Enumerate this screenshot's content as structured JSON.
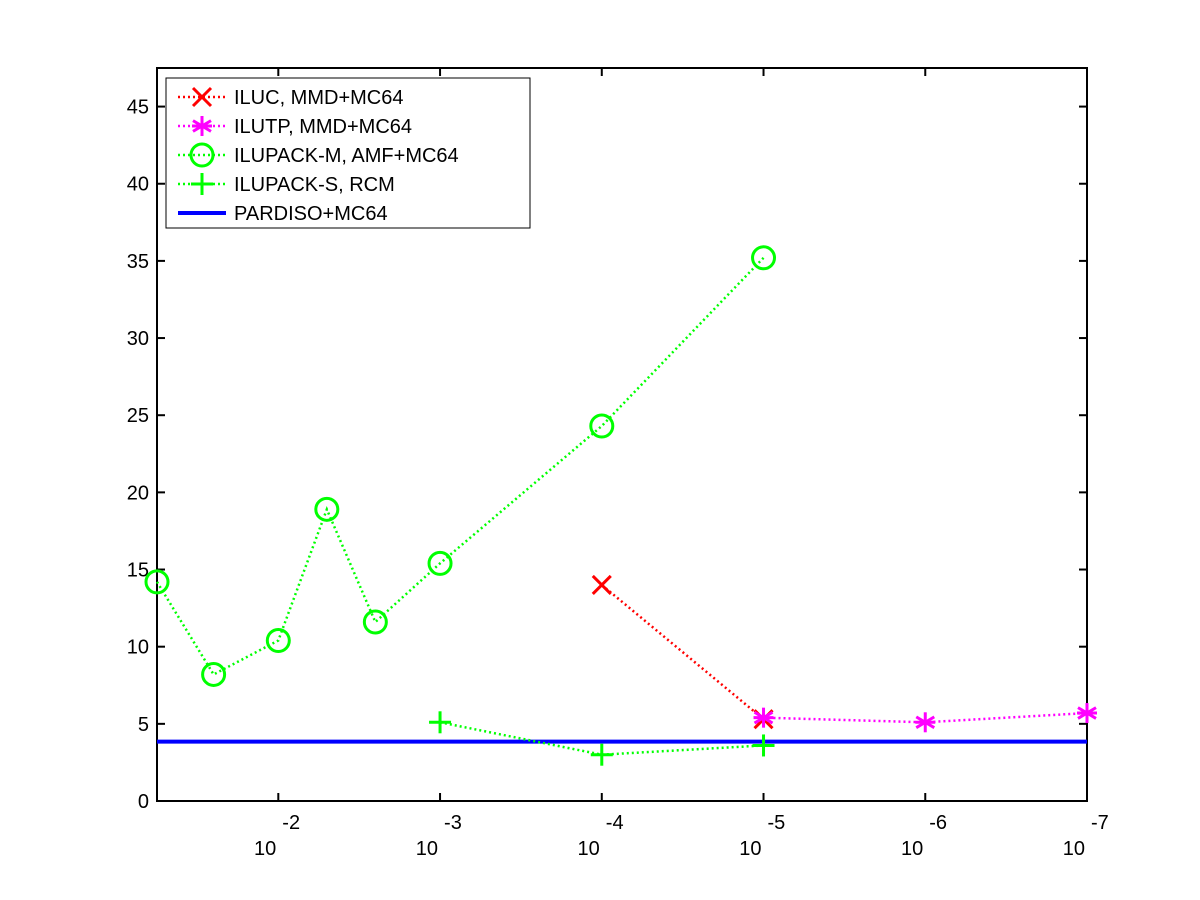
{
  "chart_data": {
    "type": "line",
    "title": "",
    "xlabel": "",
    "ylabel": "",
    "x_scale": "log-decreasing",
    "x_range_exponent": [
      -1.25,
      -7.0
    ],
    "ylim": [
      0,
      47.5
    ],
    "y_ticks": [
      0,
      5,
      10,
      15,
      20,
      25,
      30,
      35,
      40,
      45
    ],
    "x_ticks": [
      {
        "exponent": -2,
        "base": "10",
        "power": "-2"
      },
      {
        "exponent": -3,
        "base": "10",
        "power": "-3"
      },
      {
        "exponent": -4,
        "base": "10",
        "power": "-4"
      },
      {
        "exponent": -5,
        "base": "10",
        "power": "-5"
      },
      {
        "exponent": -6,
        "base": "10",
        "power": "-6"
      },
      {
        "exponent": -7,
        "base": "10",
        "power": "-7"
      }
    ],
    "grid": false,
    "legend_position": "top-left",
    "series": [
      {
        "name": "ILUC, MMD+MC64",
        "color": "#ff0000",
        "marker": "x",
        "line": "dotted",
        "points": [
          {
            "exponent": -4,
            "y": 14.0
          },
          {
            "exponent": -5,
            "y": 5.3
          }
        ]
      },
      {
        "name": "ILUTP, MMD+MC64",
        "color": "#ff00ff",
        "marker": "asterisk",
        "line": "dotted",
        "points": [
          {
            "exponent": -5,
            "y": 5.4
          },
          {
            "exponent": -6,
            "y": 5.1
          },
          {
            "exponent": -7,
            "y": 5.7
          }
        ]
      },
      {
        "name": "ILUPACK-M, AMF+MC64",
        "color": "#00ff00",
        "marker": "circle",
        "line": "dotted",
        "points": [
          {
            "exponent": -1.25,
            "y": 14.2
          },
          {
            "exponent": -1.6,
            "y": 8.2
          },
          {
            "exponent": -2.0,
            "y": 10.4
          },
          {
            "exponent": -2.3,
            "y": 18.9
          },
          {
            "exponent": -2.6,
            "y": 11.6
          },
          {
            "exponent": -3.0,
            "y": 15.4
          },
          {
            "exponent": -4.0,
            "y": 24.3
          },
          {
            "exponent": -5.0,
            "y": 35.2
          }
        ]
      },
      {
        "name": "ILUPACK-S, RCM",
        "color": "#00ff00",
        "marker": "plus",
        "line": "dotted",
        "points": [
          {
            "exponent": -3,
            "y": 5.1
          },
          {
            "exponent": -4,
            "y": 3.0
          },
          {
            "exponent": -5,
            "y": 3.6
          }
        ]
      },
      {
        "name": "PARDISO+MC64",
        "color": "#0000ff",
        "marker": "none",
        "line": "solid",
        "points": [
          {
            "exponent": -1.25,
            "y": 3.85
          },
          {
            "exponent": -7.0,
            "y": 3.85
          }
        ]
      }
    ]
  }
}
